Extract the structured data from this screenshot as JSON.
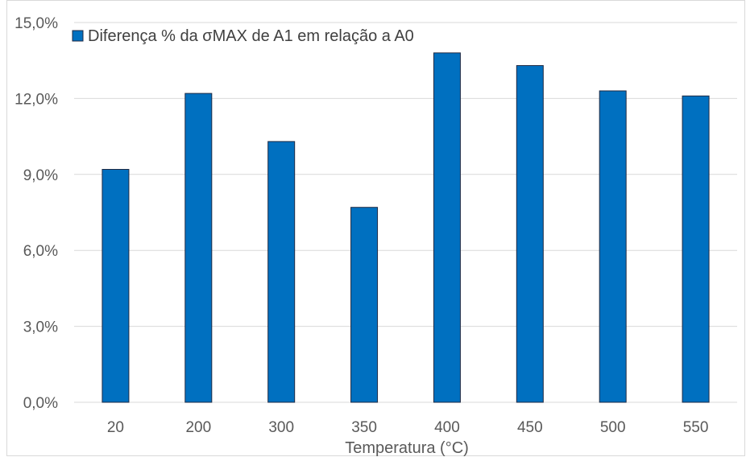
{
  "colors": {
    "bar_fill": "#0070C0",
    "bar_stroke": "#1F2A44",
    "gridline": "#D9D9D9",
    "text": "#595959",
    "legend_text": "#404040",
    "frame": "#D9D9D9"
  },
  "chart_data": {
    "type": "bar",
    "categories": [
      "20",
      "200",
      "300",
      "350",
      "400",
      "450",
      "500",
      "550"
    ],
    "series": [
      {
        "name": "Diferença % da σMAX de A1 em relação a A0",
        "values": [
          9.2,
          12.2,
          10.3,
          7.7,
          13.8,
          13.3,
          12.3,
          12.1
        ]
      }
    ],
    "title": "",
    "xlabel": "Temperatura (°C)",
    "ylabel": "",
    "ylim": [
      0,
      15
    ],
    "yticks": [
      0,
      3,
      6,
      9,
      12,
      15
    ],
    "ytick_labels": [
      "0,0%",
      "3,0%",
      "6,0%",
      "9,0%",
      "12,0%",
      "15,0%"
    ],
    "grid": true,
    "legend_position": "top-left"
  }
}
